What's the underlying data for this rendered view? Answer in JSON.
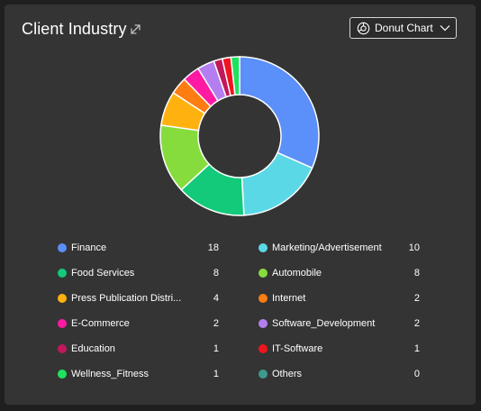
{
  "header": {
    "title": "Client Industry",
    "expand_icon": "expand-arrows-icon"
  },
  "chart_selector": {
    "icon": "donut-chart-icon",
    "label": "Donut Chart",
    "chevron": "chevron-down-icon"
  },
  "colors": {
    "card_background": "#343434",
    "page_background": "#1f1f1f",
    "text": "#ffffff"
  },
  "chart_data": {
    "type": "pie",
    "variant": "donut",
    "title": "",
    "slices": [
      {
        "label": "Finance",
        "value": 18,
        "color": "#5b8ff9"
      },
      {
        "label": "Marketing/Advertisement",
        "value": 10,
        "color": "#5ad8e6"
      },
      {
        "label": "Food Services",
        "value": 8,
        "color": "#13c97a"
      },
      {
        "label": "Automobile",
        "value": 8,
        "color": "#86dc3d"
      },
      {
        "label": "Press Publication Distri...",
        "value": 4,
        "color": "#ffb20f"
      },
      {
        "label": "Internet",
        "value": 2,
        "color": "#fd7d12"
      },
      {
        "label": "E-Commerce",
        "value": 2,
        "color": "#ff19a3"
      },
      {
        "label": "Software_Development",
        "value": 2,
        "color": "#b37ff0"
      },
      {
        "label": "Education",
        "value": 1,
        "color": "#c2185b"
      },
      {
        "label": "IT-Software",
        "value": 1,
        "color": "#f0141e"
      },
      {
        "label": "Wellness_Fitness",
        "value": 1,
        "color": "#1fe35c"
      },
      {
        "label": "Others",
        "value": 0,
        "color": "#3e9a8c"
      }
    ],
    "pie_order": [
      "Finance",
      "Marketing/Advertisement",
      "Food Services",
      "Automobile",
      "Press Publication Distri...",
      "Internet",
      "E-Commerce",
      "Software_Development",
      "Education",
      "IT-Software",
      "Wellness_Fitness",
      "Others"
    ],
    "legend_placement": "bottom"
  }
}
